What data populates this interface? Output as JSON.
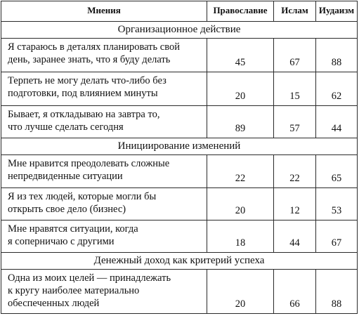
{
  "header": {
    "col_opinions": "Мнения",
    "col_orthodoxy": "Православие",
    "col_islam": "Ислам",
    "col_judaism": "Иудаизм"
  },
  "sections": [
    {
      "title": "Организационное действие",
      "rows": [
        {
          "text": "Я стараюсь в деталях планировать свой\nдень, заранее знать, что я буду делать",
          "orthodoxy": "45",
          "islam": "67",
          "judaism": "88"
        },
        {
          "text": "Терпеть не могу делать что-либо без\nподготовки, под влиянием минуты",
          "orthodoxy": "20",
          "islam": "15",
          "judaism": "62"
        },
        {
          "text": "Бывает, я откладываю на завтра то,\nчто лучше сделать сегодня",
          "orthodoxy": "89",
          "islam": "57",
          "judaism": "44"
        }
      ]
    },
    {
      "title": "Инициирование изменений",
      "rows": [
        {
          "text": "Мне нравится преодолевать сложные\nнепредвиденные ситуации",
          "orthodoxy": "22",
          "islam": "22",
          "judaism": "65"
        },
        {
          "text": "Я из тех людей, которые могли бы\nоткрыть свое дело (бизнес)",
          "orthodoxy": "20",
          "islam": "12",
          "judaism": "53"
        },
        {
          "text": "Мне нравятся ситуации, когда\nя соперничаю с другими",
          "orthodoxy": "18",
          "islam": "44",
          "judaism": "67"
        }
      ]
    },
    {
      "title": "Денежный доход как критерий успеха",
      "rows": [
        {
          "text": "Одна из моих целей — принадлежать\nк кругу наиболее материально\nобеспеченных людей",
          "orthodoxy": "20",
          "islam": "66",
          "judaism": "88"
        }
      ]
    }
  ]
}
